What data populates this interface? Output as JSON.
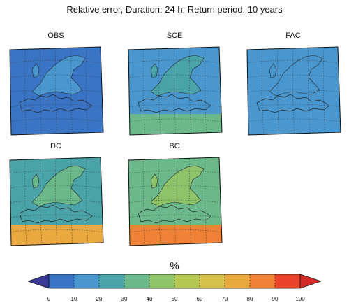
{
  "title": "Relative error, Duration: 24 h, Return period: 10 years",
  "colorbar": {
    "unit": "%",
    "ticks": [
      "0",
      "10",
      "20",
      "30",
      "40",
      "50",
      "60",
      "70",
      "80",
      "90",
      "100"
    ],
    "colors": [
      "#3b4fa8",
      "#3a74c4",
      "#4a97cf",
      "#4aa3a8",
      "#6bb98a",
      "#8ec36a",
      "#b6c653",
      "#d4c04a",
      "#e9a93e",
      "#ef8236",
      "#e8452c",
      "#d42e2a"
    ],
    "under_color": "#3b3a96",
    "over_color": "#d42a27"
  },
  "panels": [
    {
      "label": "OBS",
      "mean_error_pct": 18,
      "south_error_pct": 15,
      "land_error_pct": 22
    },
    {
      "label": "SCE",
      "mean_error_pct": 28,
      "south_error_pct": 45,
      "land_error_pct": 30
    },
    {
      "label": "FAC",
      "mean_error_pct": 25,
      "south_error_pct": 25,
      "land_error_pct": 25
    },
    {
      "label": "DC",
      "mean_error_pct": 35,
      "south_error_pct": 85,
      "land_error_pct": 40
    },
    {
      "label": "BC",
      "mean_error_pct": 45,
      "south_error_pct": 95,
      "land_error_pct": 50
    }
  ]
}
